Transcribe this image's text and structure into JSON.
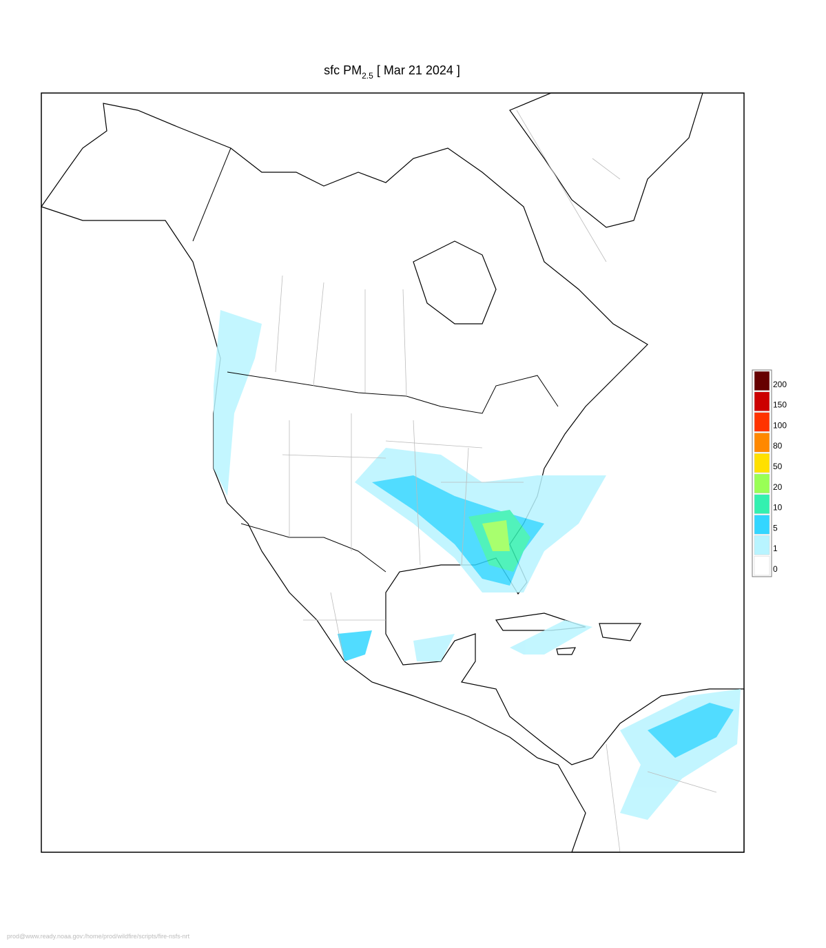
{
  "title": {
    "prefix": "sfc PM",
    "subscript": "2.5",
    "suffix": "[ Mar 21 2024 ]"
  },
  "colorbar": {
    "levels": [
      0,
      1,
      5,
      10,
      20,
      50,
      80,
      100,
      150,
      200
    ],
    "colors": [
      "#ffffff",
      "#b8f4ff",
      "#33d6ff",
      "#33f0b0",
      "#99ff55",
      "#ffe000",
      "#ff8800",
      "#ff3300",
      "#cc0000",
      "#660000"
    ]
  },
  "footer": "prod@www.ready.noaa.gov:/home/prod/wildfire/scripts/fire-nsfs-nrt"
}
